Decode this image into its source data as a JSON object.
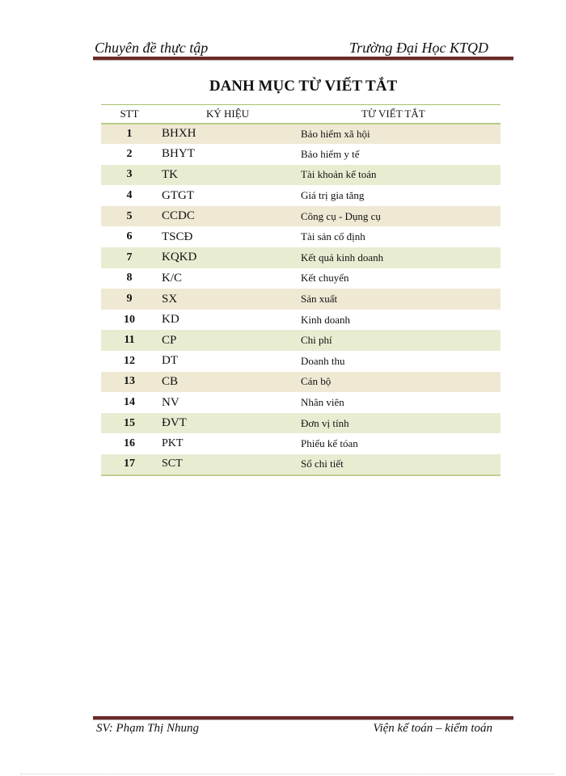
{
  "header": {
    "left": "Chuyên đề thực tập",
    "right": "Trường Đại Học KTQD"
  },
  "title": "DANH MỤC TỪ VIẾT TẮT",
  "table": {
    "columns": [
      "STT",
      "KÝ HIỆU",
      "TỪ VIẾT TẮT"
    ],
    "rows": [
      {
        "stt": "1",
        "code": "BHXH",
        "meaning": "Bảo hiểm xã hội"
      },
      {
        "stt": "2",
        "code": "BHYT",
        "meaning": "Bảo hiểm y tế"
      },
      {
        "stt": "3",
        "code": "TK",
        "meaning": "Tài khoản kế toán"
      },
      {
        "stt": "4",
        "code": "GTGT",
        "meaning": "Giá trị gia tăng"
      },
      {
        "stt": "5",
        "code": "CCDC",
        "meaning": "Công cụ - Dụng cụ"
      },
      {
        "stt": "6",
        "code": "TSCĐ",
        "meaning": "Tài sản cố định"
      },
      {
        "stt": "7",
        "code": "KQKD",
        "meaning": "Kết quả kinh doanh"
      },
      {
        "stt": "8",
        "code": "K/C",
        "meaning": "Kết chuyển"
      },
      {
        "stt": "9",
        "code": "SX",
        "meaning": "Sản xuất"
      },
      {
        "stt": "10",
        "code": "KD",
        "meaning": "Kinh doanh"
      },
      {
        "stt": "11",
        "code": "CP",
        "meaning": "Chi phí"
      },
      {
        "stt": "12",
        "code": "DT",
        "meaning": "Doanh thu"
      },
      {
        "stt": "13",
        "code": "CB",
        "meaning": "Cán bộ"
      },
      {
        "stt": "14",
        "code": "NV",
        "meaning": "Nhân viên"
      },
      {
        "stt": "15",
        "code": "ĐVT",
        "meaning": "Đơn vị tính"
      },
      {
        "stt": "16",
        "code": "PKT",
        "meaning": "Phiếu kế tóan"
      },
      {
        "stt": "17",
        "code": "SCT",
        "meaning": "Sổ chi tiết"
      }
    ]
  },
  "footer": {
    "left": "SV: Phạm Thị Nhung",
    "right": "Viện kế toán – kiểm toán"
  },
  "colors": {
    "rule": "#6b2a2a",
    "row_shade": "#e8edd2",
    "table_border": "#a8c070"
  }
}
